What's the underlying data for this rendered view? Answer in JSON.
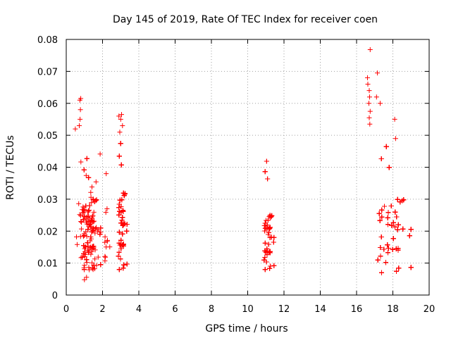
{
  "chart_data": {
    "type": "scatter",
    "title": "Day 145 of 2019, Rate Of TEC Index for receiver coen",
    "xlabel": "GPS time / hours",
    "ylabel": "ROTI / TECUs",
    "xlim": [
      0,
      20
    ],
    "ylim": [
      0,
      0.08
    ],
    "x_ticks": [
      "0",
      "2",
      "4",
      "6",
      "8",
      "10",
      "12",
      "14",
      "16",
      "18",
      "20"
    ],
    "y_ticks": [
      "0",
      "0.01",
      "0.02",
      "0.03",
      "0.04",
      "0.05",
      "0.06",
      "0.07",
      "0.08"
    ],
    "grid": true,
    "marker": "+",
    "color": "#ff0000",
    "series": [
      {
        "name": "ROTI",
        "clusters": [
          {
            "x_range": [
              0.5,
              1.9
            ],
            "y_range": [
              0.004,
              0.045
            ],
            "count": 380,
            "dense_y": [
              0.008,
              0.03
            ]
          },
          {
            "x_range": [
              2.0,
              2.4
            ],
            "y_range": [
              0.007,
              0.027
            ],
            "count": 10,
            "dense_y": [
              0.008,
              0.02
            ]
          },
          {
            "x_range": [
              2.7,
              3.35
            ],
            "y_range": [
              0.004,
              0.05
            ],
            "count": 320,
            "dense_y": [
              0.008,
              0.032
            ]
          },
          {
            "x_range": [
              10.7,
              11.45
            ],
            "y_range": [
              0.006,
              0.044
            ],
            "count": 140,
            "dense_y": [
              0.008,
              0.025
            ]
          },
          {
            "x_range": [
              16.5,
              19.0
            ],
            "y_range": [
              0.004,
              0.049
            ],
            "count": 520,
            "dense_y": [
              0.007,
              0.03
            ]
          }
        ],
        "points": [
          {
            "x": 0.75,
            "y": 0.061
          },
          {
            "x": 0.8,
            "y": 0.0615
          },
          {
            "x": 0.78,
            "y": 0.058
          },
          {
            "x": 0.76,
            "y": 0.055
          },
          {
            "x": 0.72,
            "y": 0.053
          },
          {
            "x": 0.5,
            "y": 0.052
          },
          {
            "x": 2.2,
            "y": 0.038
          },
          {
            "x": 2.25,
            "y": 0.027
          },
          {
            "x": 2.9,
            "y": 0.056
          },
          {
            "x": 3.05,
            "y": 0.0565
          },
          {
            "x": 3.0,
            "y": 0.055
          },
          {
            "x": 3.1,
            "y": 0.053
          },
          {
            "x": 2.95,
            "y": 0.051
          },
          {
            "x": 16.75,
            "y": 0.0768
          },
          {
            "x": 17.15,
            "y": 0.0695
          },
          {
            "x": 16.6,
            "y": 0.068
          },
          {
            "x": 16.62,
            "y": 0.066
          },
          {
            "x": 16.7,
            "y": 0.064
          },
          {
            "x": 16.72,
            "y": 0.062
          },
          {
            "x": 16.68,
            "y": 0.06
          },
          {
            "x": 16.75,
            "y": 0.0575
          },
          {
            "x": 16.7,
            "y": 0.0555
          },
          {
            "x": 16.73,
            "y": 0.0535
          },
          {
            "x": 17.1,
            "y": 0.062
          },
          {
            "x": 17.3,
            "y": 0.06
          },
          {
            "x": 18.1,
            "y": 0.055
          },
          {
            "x": 18.15,
            "y": 0.049
          }
        ]
      }
    ]
  }
}
